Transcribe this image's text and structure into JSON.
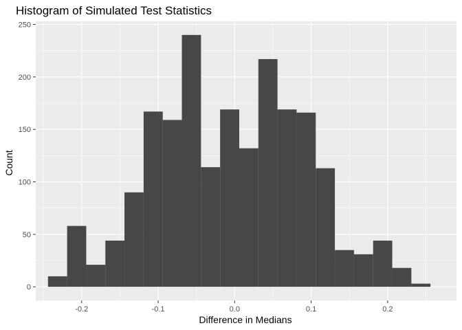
{
  "chart_data": {
    "type": "bar",
    "title": "Histogram of Simulated Test Statistics",
    "xlabel": "Difference in Medians",
    "ylabel": "Count",
    "xlim": [
      -0.26,
      0.29
    ],
    "ylim": [
      -13,
      253
    ],
    "x_ticks": [
      -0.2,
      -0.1,
      0.0,
      0.1,
      0.2
    ],
    "x_tick_labels": [
      "-0.2",
      "-0.1",
      "0.0",
      "0.1",
      "0.2"
    ],
    "y_ticks": [
      0,
      50,
      100,
      150,
      200,
      250
    ],
    "y_tick_labels": [
      "0",
      "50",
      "100",
      "150",
      "200",
      "250"
    ],
    "bin_width": 0.025,
    "bins": [
      {
        "x0": -0.244,
        "count": 10
      },
      {
        "x0": -0.219,
        "count": 58
      },
      {
        "x0": -0.194,
        "count": 21
      },
      {
        "x0": -0.169,
        "count": 44
      },
      {
        "x0": -0.144,
        "count": 90
      },
      {
        "x0": -0.119,
        "count": 167
      },
      {
        "x0": -0.094,
        "count": 159
      },
      {
        "x0": -0.069,
        "count": 240
      },
      {
        "x0": -0.044,
        "count": 114
      },
      {
        "x0": -0.019,
        "count": 169
      },
      {
        "x0": 0.006,
        "count": 132
      },
      {
        "x0": 0.031,
        "count": 217
      },
      {
        "x0": 0.056,
        "count": 169
      },
      {
        "x0": 0.081,
        "count": 166
      },
      {
        "x0": 0.106,
        "count": 113
      },
      {
        "x0": 0.131,
        "count": 35
      },
      {
        "x0": 0.156,
        "count": 31
      },
      {
        "x0": 0.181,
        "count": 44
      },
      {
        "x0": 0.206,
        "count": 18
      },
      {
        "x0": 0.231,
        "count": 3
      }
    ],
    "grid": true,
    "legend": "none",
    "colors": {
      "panel_background": "#ebebeb",
      "grid_major": "#ffffff",
      "bar_fill": "#474747",
      "tick_text": "#4d4d4d",
      "tick_mark": "#333333"
    }
  }
}
